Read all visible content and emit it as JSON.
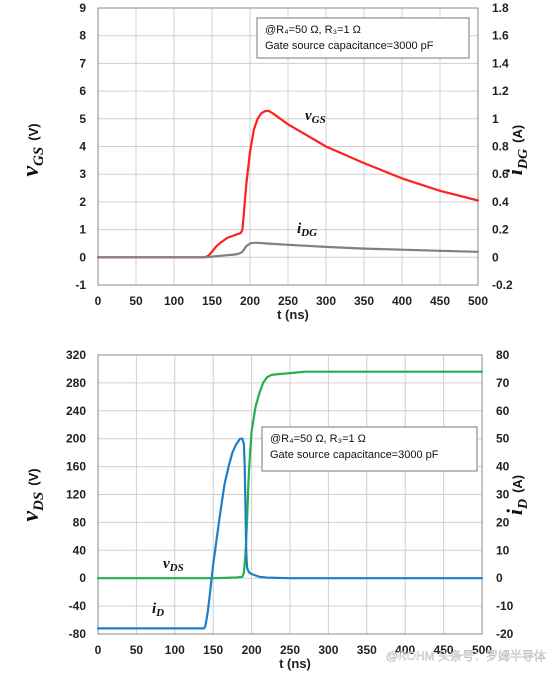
{
  "watermark": "@ROHM 头条号：罗姆半导体",
  "chart_data": [
    {
      "type": "line",
      "annotation_lines": [
        "@R₄=50 Ω, R₃=1 Ω",
        "Gate source capacitance=3000 pF"
      ],
      "xlabel": "t (ns)",
      "xlim": [
        0,
        500
      ],
      "xticks": [
        "0",
        "50",
        "100",
        "150",
        "200",
        "250",
        "300",
        "350",
        "400",
        "450",
        "500"
      ],
      "ylabel_left": {
        "main": "v",
        "sub": "GS",
        "unit": "(V)"
      },
      "ylim_left": [
        -1,
        9
      ],
      "yticks_left": [
        "-1",
        "0",
        "1",
        "2",
        "3",
        "4",
        "5",
        "6",
        "7",
        "8",
        "9"
      ],
      "ylabel_right": {
        "main": "i",
        "sub": "DG",
        "unit": "(A)"
      },
      "ylim_right": [
        -0.2,
        1.8
      ],
      "yticks_right": [
        "-0.2",
        "0",
        "0.2",
        "0.4",
        "0.6",
        "0.8",
        "1",
        "1.2",
        "1.4",
        "1.6",
        "1.8"
      ],
      "grid": true,
      "series": [
        {
          "name": "vGS",
          "label_main": "v",
          "label_sub": "GS",
          "axis": "left",
          "color": "#ff2020",
          "x": [
            0,
            100,
            140,
            145,
            150,
            155,
            160,
            165,
            170,
            180,
            185,
            188,
            190,
            192,
            195,
            200,
            205,
            210,
            215,
            220,
            225,
            230,
            250,
            300,
            350,
            400,
            450,
            500
          ],
          "y": [
            0,
            0,
            0,
            0.05,
            0.2,
            0.38,
            0.5,
            0.6,
            0.7,
            0.8,
            0.85,
            0.88,
            1.0,
            1.6,
            2.6,
            3.8,
            4.6,
            5.0,
            5.2,
            5.28,
            5.28,
            5.2,
            4.8,
            4.0,
            3.4,
            2.85,
            2.4,
            2.05
          ]
        },
        {
          "name": "iDG",
          "label_main": "i",
          "label_sub": "DG",
          "axis": "right",
          "color": "#808080",
          "x": [
            0,
            140,
            150,
            160,
            170,
            180,
            185,
            190,
            195,
            200,
            205,
            210,
            220,
            230,
            250,
            300,
            350,
            400,
            450,
            500
          ],
          "y": [
            0,
            0,
            0.005,
            0.01,
            0.015,
            0.02,
            0.025,
            0.04,
            0.08,
            0.1,
            0.105,
            0.105,
            0.1,
            0.097,
            0.09,
            0.075,
            0.063,
            0.055,
            0.047,
            0.04
          ]
        }
      ]
    },
    {
      "type": "line",
      "annotation_lines": [
        "@R₄=50 Ω, R₃=1 Ω",
        "Gate source capacitance=3000 pF"
      ],
      "xlabel": "t (ns)",
      "xlim": [
        0,
        500
      ],
      "xticks": [
        "0",
        "50",
        "100",
        "150",
        "200",
        "250",
        "300",
        "350",
        "400",
        "450",
        "500"
      ],
      "ylabel_left": {
        "main": "v",
        "sub": "DS",
        "unit": "(V)"
      },
      "ylim_left": [
        -80,
        320
      ],
      "yticks_left": [
        "-80",
        "-40",
        "0",
        "40",
        "80",
        "120",
        "160",
        "200",
        "240",
        "280",
        "320"
      ],
      "ylabel_right": {
        "main": "i",
        "sub": "D",
        "unit": "(A)"
      },
      "ylim_right": [
        -20,
        80
      ],
      "yticks_right": [
        "-20",
        "-10",
        "0",
        "10",
        "20",
        "30",
        "40",
        "50",
        "60",
        "70",
        "80"
      ],
      "grid": true,
      "series": [
        {
          "name": "vDS",
          "label_main": "v",
          "label_sub": "DS",
          "axis": "left",
          "color": "#22b14c",
          "x": [
            0,
            100,
            150,
            180,
            188,
            190,
            192,
            194,
            196,
            198,
            200,
            205,
            210,
            215,
            220,
            225,
            230,
            250,
            270,
            300,
            400,
            500
          ],
          "y": [
            0,
            0,
            0,
            1,
            2,
            8,
            35,
            80,
            140,
            180,
            210,
            245,
            265,
            280,
            288,
            291,
            292,
            294,
            296,
            296,
            296,
            296
          ]
        },
        {
          "name": "iD",
          "label_main": "i",
          "label_sub": "D",
          "axis": "right",
          "color": "#1e7fc8",
          "x": [
            0,
            100,
            130,
            138,
            140,
            143,
            146,
            150,
            155,
            160,
            165,
            170,
            175,
            180,
            185,
            188,
            190,
            191,
            192,
            193,
            194,
            195,
            197,
            200,
            205,
            210,
            220,
            250,
            300,
            400,
            500
          ],
          "y": [
            -18,
            -18,
            -18,
            -18,
            -17,
            -12,
            -5,
            5,
            15,
            25,
            34,
            40,
            45,
            48,
            50,
            50,
            48,
            40,
            25,
            10,
            4,
            3,
            2,
            1.5,
            1,
            0.5,
            0.2,
            0,
            0,
            0,
            0
          ]
        }
      ]
    }
  ]
}
